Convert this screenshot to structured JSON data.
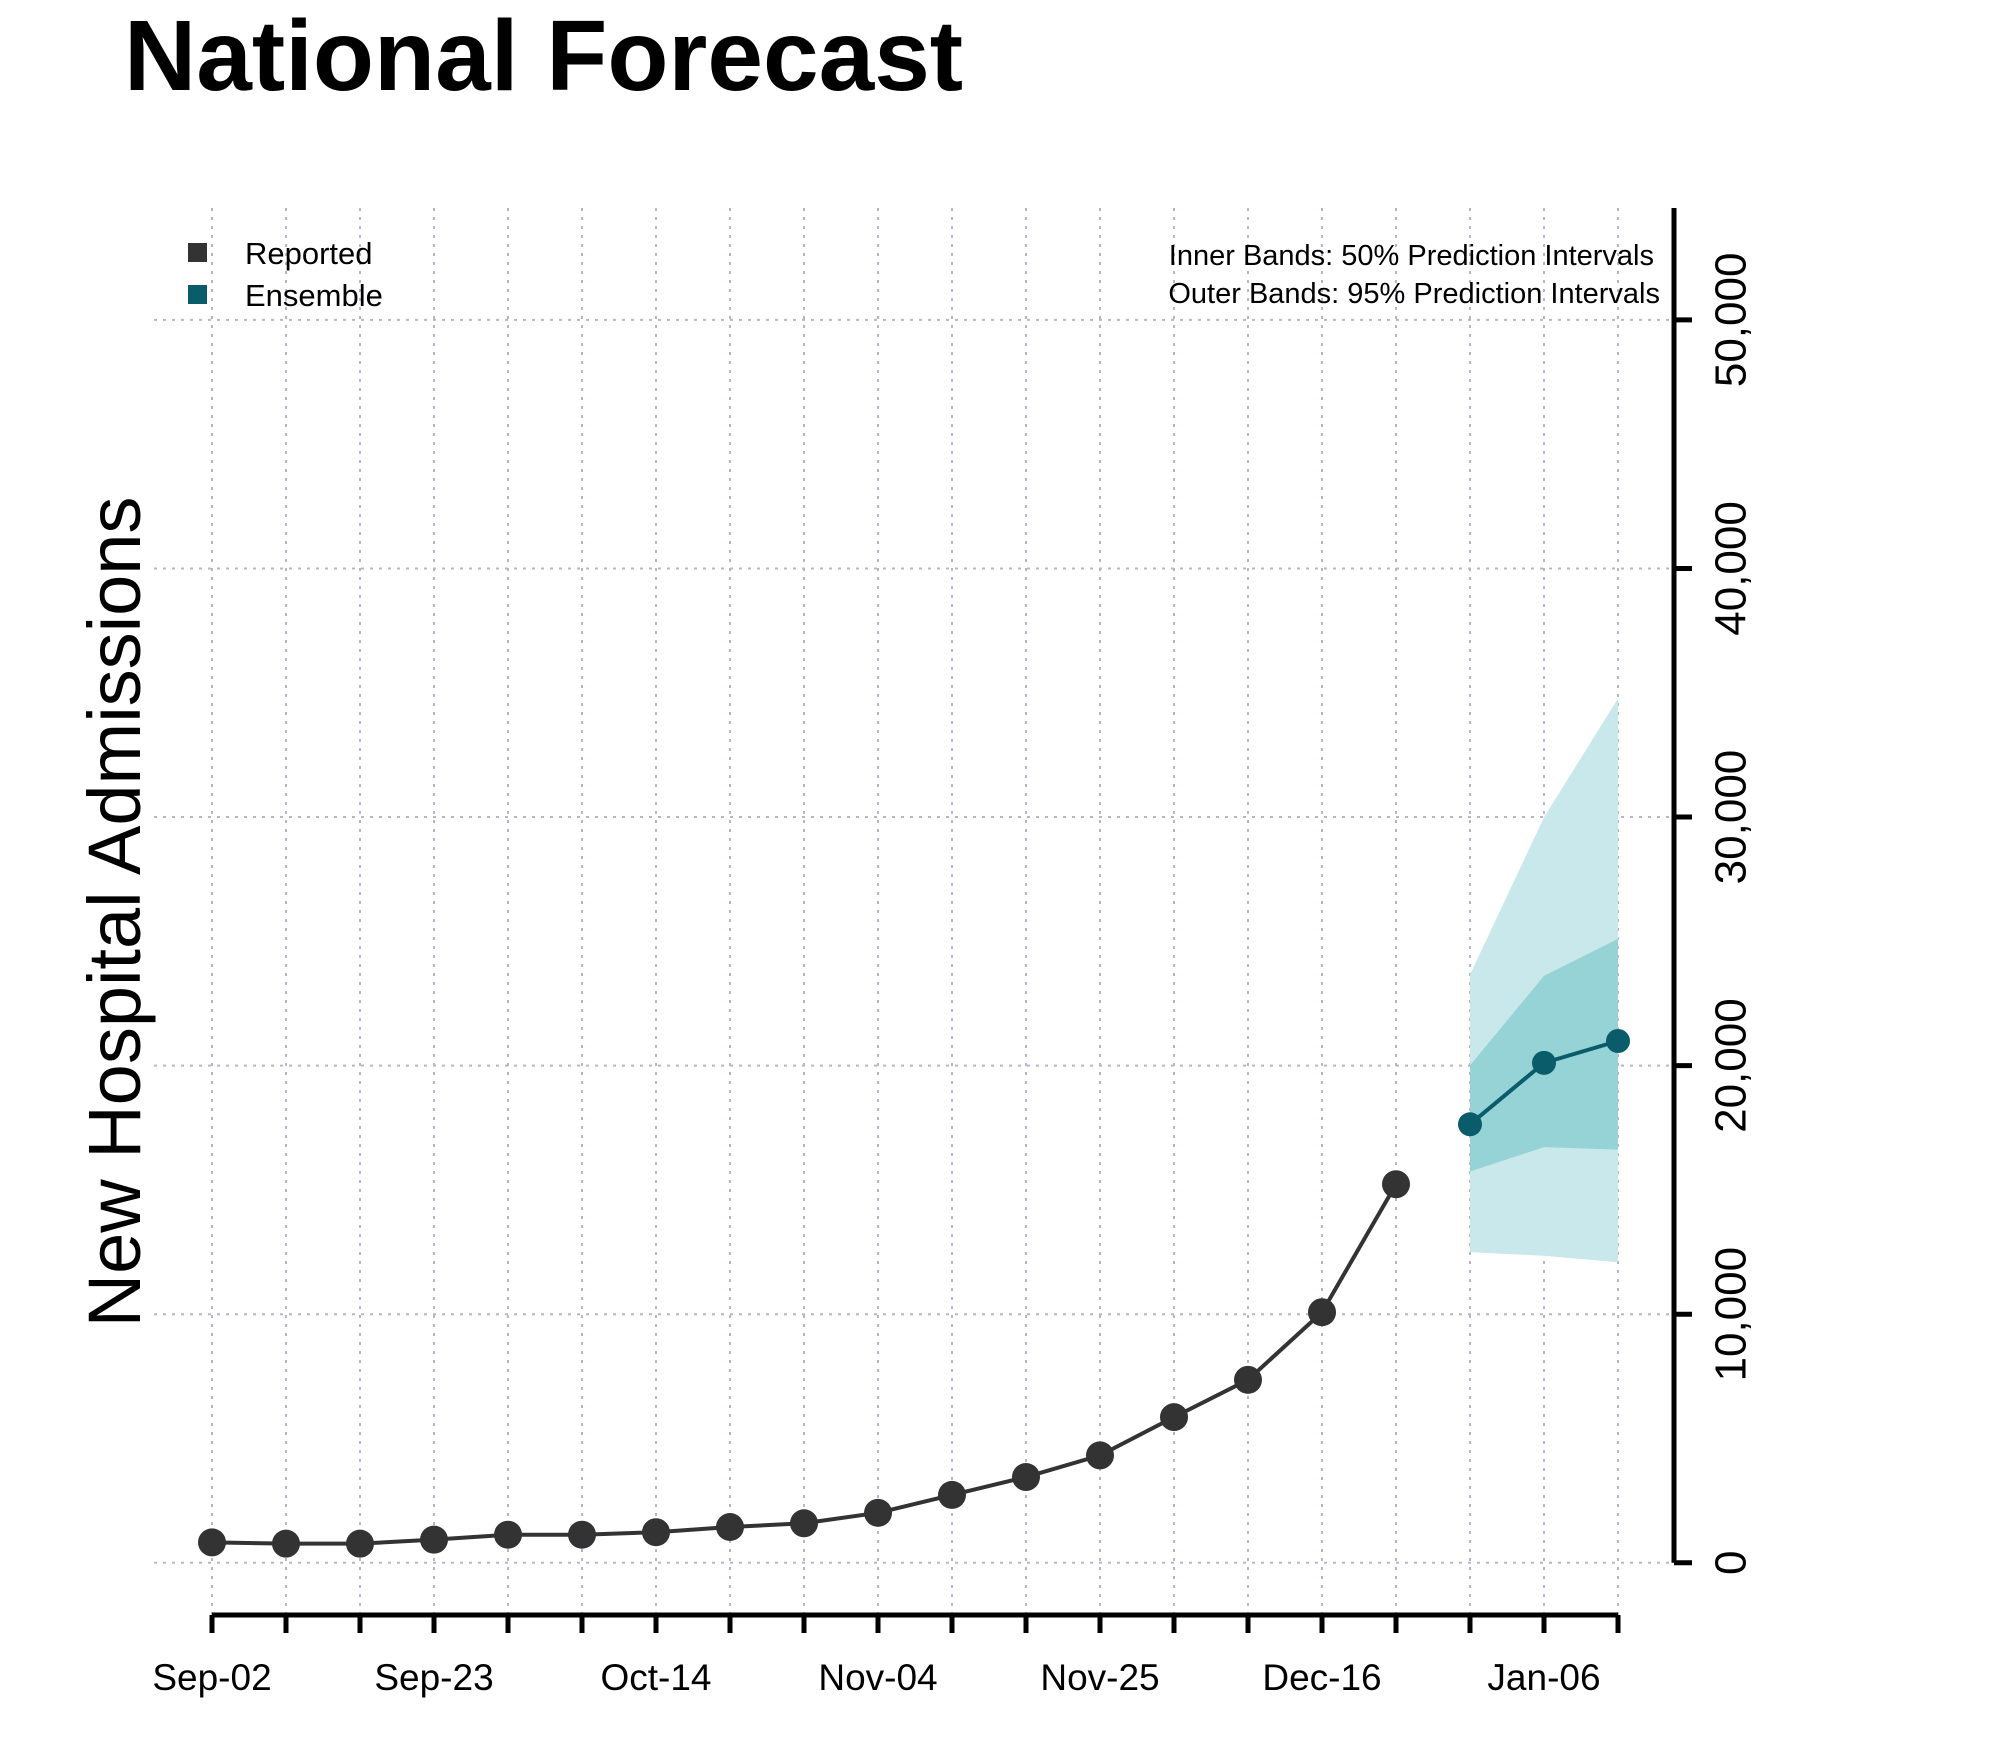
{
  "chart_data": {
    "type": "line",
    "title": "National Forecast",
    "xlabel": "",
    "ylabel": "New Hospital Admissions",
    "x": [
      "Sep-02",
      "Sep-09",
      "Sep-16",
      "Sep-23",
      "Sep-30",
      "Oct-07",
      "Oct-14",
      "Oct-21",
      "Oct-28",
      "Nov-04",
      "Nov-11",
      "Nov-18",
      "Nov-25",
      "Dec-02",
      "Dec-09",
      "Dec-16",
      "Dec-23",
      "Dec-30",
      "Jan-06",
      "Jan-13"
    ],
    "x_tick_labels": [
      "Sep-02",
      "Sep-23",
      "Oct-14",
      "Nov-04",
      "Nov-25",
      "Dec-16",
      "Jan-06"
    ],
    "y_ticks": [
      0,
      10000,
      20000,
      30000,
      40000,
      50000
    ],
    "y_tick_labels": [
      "0",
      "10,000",
      "20,000",
      "30,000",
      "40,000",
      "50,000"
    ],
    "ylim": [
      -2100,
      54500
    ],
    "y_axis_side": "right",
    "grid": true,
    "legend_placement": "top-left",
    "series": [
      {
        "name": "Reported",
        "color": "#333333",
        "x": [
          "Sep-02",
          "Sep-09",
          "Sep-16",
          "Sep-23",
          "Sep-30",
          "Oct-07",
          "Oct-14",
          "Oct-21",
          "Oct-28",
          "Nov-04",
          "Nov-11",
          "Nov-18",
          "Nov-25",
          "Dec-02",
          "Dec-09",
          "Dec-16",
          "Dec-23"
        ],
        "values": [
          820,
          770,
          770,
          930,
          1130,
          1130,
          1230,
          1440,
          1590,
          2010,
          2730,
          3450,
          4320,
          5860,
          7360,
          10080,
          15230
        ]
      },
      {
        "name": "Ensemble",
        "color": "#0b5c6b",
        "x": [
          "Dec-30",
          "Jan-06",
          "Jan-13"
        ],
        "values": [
          17640,
          20110,
          20990
        ],
        "interval_50": {
          "lower": [
            15740,
            16720,
            16620
          ],
          "upper": [
            20010,
            23610,
            25100
          ],
          "color": "#96d3d7"
        },
        "interval_95": {
          "lower": [
            12500,
            12350,
            12090
          ],
          "upper": [
            23660,
            29990,
            34770
          ],
          "color": "#c9e8eb"
        }
      }
    ],
    "annotations": [
      "Inner Bands: 50% Prediction Intervals",
      "Outer Bands: 95% Prediction Intervals"
    ]
  }
}
